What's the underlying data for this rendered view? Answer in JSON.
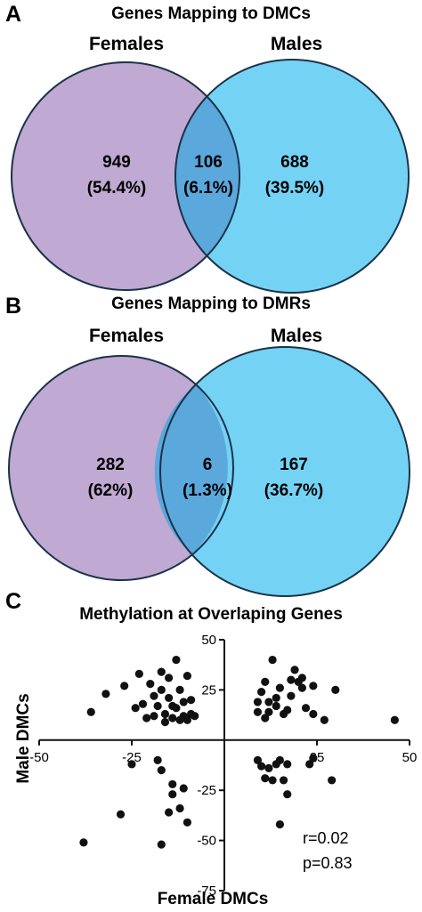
{
  "panels": {
    "a": {
      "letter": "A",
      "title": "Genes Mapping to DMCs",
      "left_label": "Females",
      "right_label": "Males",
      "left_count": "949",
      "left_pct": "(54.4%)",
      "overlap_count": "106",
      "overlap_pct": "(6.1%)",
      "right_count": "688",
      "right_pct": "(39.5%)"
    },
    "b": {
      "letter": "B",
      "title": "Genes Mapping to DMRs",
      "left_label": "Females",
      "right_label": "Males",
      "left_count": "282",
      "left_pct": "(62%)",
      "overlap_count": "6",
      "overlap_pct": "(1.3%)",
      "right_count": "167",
      "right_pct": "(36.7%)"
    },
    "c": {
      "letter": "C",
      "r_text": "r=0.02",
      "p_text": "p=0.83"
    }
  },
  "colors": {
    "females": "#c0a9d2",
    "males": "#74d3f5",
    "overlap": "#5aa8dc",
    "outline": "#1b3348",
    "points": "#111111"
  },
  "chart_data": [
    {
      "type": "venn",
      "title": "Genes Mapping to DMCs",
      "sets": [
        "Females",
        "Males"
      ],
      "only_females": 949,
      "only_females_pct": 54.4,
      "both": 106,
      "both_pct": 6.1,
      "only_males": 688,
      "only_males_pct": 39.5
    },
    {
      "type": "venn",
      "title": "Genes Mapping to DMRs",
      "sets": [
        "Females",
        "Males"
      ],
      "only_females": 282,
      "only_females_pct": 62,
      "both": 6,
      "both_pct": 1.3,
      "only_males": 167,
      "only_males_pct": 36.7
    },
    {
      "type": "scatter",
      "title": "Methylation at Overlaping Genes",
      "xlabel": "Female DMCs",
      "ylabel": "Male DMCs",
      "xlim": [
        -50,
        50
      ],
      "ylim": [
        -75,
        50
      ],
      "xticks": [
        -50,
        -25,
        25,
        50
      ],
      "yticks": [
        50,
        25,
        -25,
        -50,
        -75
      ],
      "grid": false,
      "r": 0.02,
      "p": 0.83,
      "points": [
        [
          -36,
          14
        ],
        [
          -32,
          23
        ],
        [
          -27,
          27
        ],
        [
          -24,
          16
        ],
        [
          -23,
          33
        ],
        [
          -22,
          18
        ],
        [
          -21,
          11
        ],
        [
          -20,
          28
        ],
        [
          -19,
          22
        ],
        [
          -19,
          12
        ],
        [
          -18,
          17
        ],
        [
          -17,
          34
        ],
        [
          -17,
          25
        ],
        [
          -16,
          13
        ],
        [
          -16,
          9
        ],
        [
          -15,
          31
        ],
        [
          -15,
          21
        ],
        [
          -14,
          17
        ],
        [
          -14,
          11
        ],
        [
          -13,
          16
        ],
        [
          -12,
          25
        ],
        [
          -12,
          10
        ],
        [
          -11,
          19
        ],
        [
          -11,
          12
        ],
        [
          -10,
          32
        ],
        [
          -10,
          10
        ],
        [
          -9,
          20
        ],
        [
          -9,
          13
        ],
        [
          -13,
          40
        ],
        [
          -8,
          12
        ],
        [
          -25,
          -12
        ],
        [
          -18,
          -10
        ],
        [
          -17,
          -15
        ],
        [
          -14,
          -22
        ],
        [
          -14,
          -27
        ],
        [
          -11,
          -24
        ],
        [
          -15,
          -36
        ],
        [
          -12,
          -34
        ],
        [
          -10,
          -41
        ],
        [
          -28,
          -37
        ],
        [
          -17,
          -52
        ],
        [
          -38,
          -51
        ],
        [
          9,
          19
        ],
        [
          9,
          14
        ],
        [
          10,
          24
        ],
        [
          11,
          29
        ],
        [
          11,
          11
        ],
        [
          12,
          19
        ],
        [
          12,
          14
        ],
        [
          13,
          40
        ],
        [
          14,
          21
        ],
        [
          14,
          17
        ],
        [
          15,
          26
        ],
        [
          16,
          13
        ],
        [
          17,
          15
        ],
        [
          18,
          22
        ],
        [
          18,
          30
        ],
        [
          19,
          35
        ],
        [
          20,
          29
        ],
        [
          21,
          26
        ],
        [
          21,
          31
        ],
        [
          22,
          16
        ],
        [
          24,
          27
        ],
        [
          24,
          13
        ],
        [
          27,
          10
        ],
        [
          30,
          25
        ],
        [
          46,
          10
        ],
        [
          9,
          -10
        ],
        [
          10,
          -13
        ],
        [
          11,
          -19
        ],
        [
          12,
          -14
        ],
        [
          13,
          -20
        ],
        [
          14,
          -12
        ],
        [
          15,
          -10
        ],
        [
          16,
          -20
        ],
        [
          17,
          -12
        ],
        [
          17,
          -27
        ],
        [
          15,
          -42
        ],
        [
          24,
          -9
        ],
        [
          23,
          -12
        ],
        [
          29,
          -20
        ]
      ]
    }
  ]
}
